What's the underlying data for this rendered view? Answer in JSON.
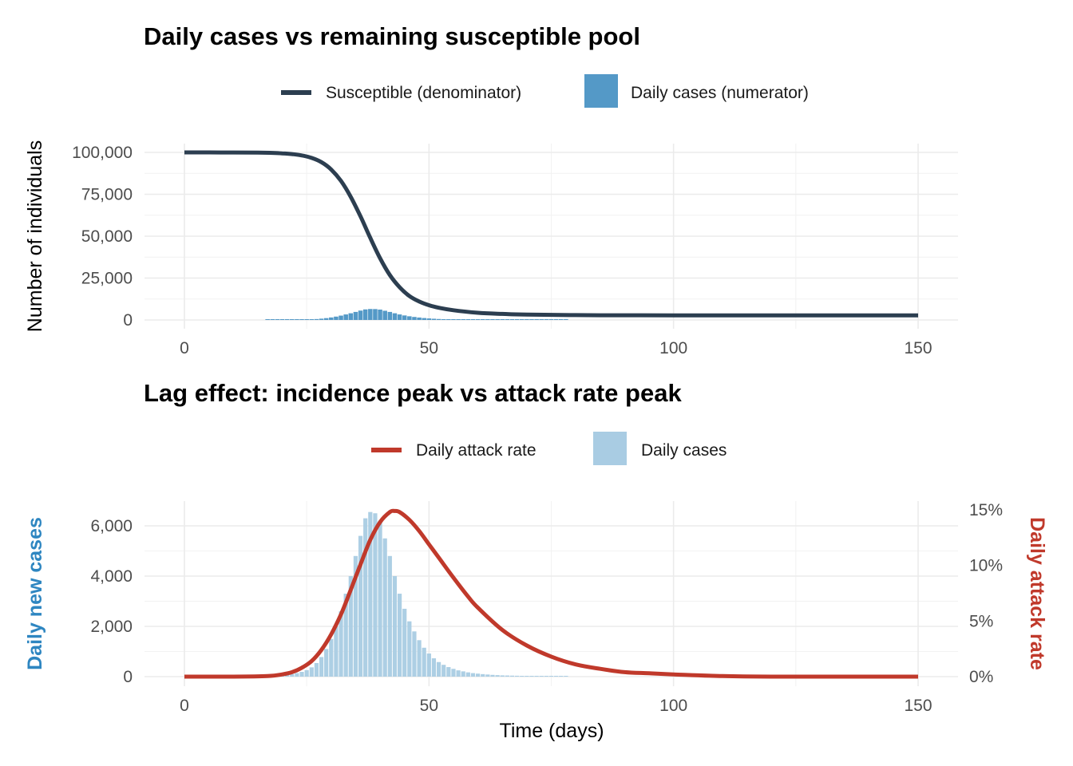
{
  "chart_data": [
    {
      "type": "line",
      "title": "Daily cases vs remaining susceptible pool",
      "xlabel": "",
      "ylabel": "Number of individuals",
      "xlim": [
        0,
        150
      ],
      "ylim": [
        0,
        100000
      ],
      "x_ticks": [
        0,
        50,
        100,
        150
      ],
      "x_tick_labels": [
        "0",
        "50",
        "100",
        "150"
      ],
      "y_ticks": [
        0,
        25000,
        50000,
        75000,
        100000
      ],
      "y_tick_labels": [
        "0",
        "25,000",
        "50,000",
        "75,000",
        "100,000"
      ],
      "grid": true,
      "legend_position": "top",
      "legend": [
        {
          "name": "Susceptible (denominator)",
          "kind": "line",
          "color": "#2c3e50"
        },
        {
          "name": "Daily cases (numerator)",
          "kind": "bar",
          "color": "#5499c7"
        }
      ],
      "series": [
        {
          "name": "Susceptible (denominator)",
          "type": "line",
          "color": "#2c3e50",
          "x": [
            0,
            5,
            10,
            15,
            18,
            20,
            22,
            24,
            26,
            28,
            30,
            32,
            34,
            36,
            38,
            40,
            42,
            44,
            46,
            48,
            50,
            52,
            55,
            60,
            65,
            70,
            80,
            90,
            100,
            120,
            150
          ],
          "values": [
            100000,
            99980,
            99940,
            99850,
            99700,
            99450,
            99000,
            98200,
            96700,
            94200,
            89800,
            83000,
            73500,
            61800,
            49000,
            36800,
            26800,
            19500,
            14300,
            11000,
            8800,
            7300,
            5800,
            4300,
            3600,
            3200,
            2900,
            2800,
            2750,
            2700,
            2700
          ]
        }
      ],
      "bars": {
        "name": "Daily cases (numerator)",
        "color": "#5499c7",
        "x": [
          17,
          18,
          19,
          20,
          21,
          22,
          23,
          24,
          25,
          26,
          27,
          28,
          29,
          30,
          31,
          32,
          33,
          34,
          35,
          36,
          37,
          38,
          39,
          40,
          41,
          42,
          43,
          44,
          45,
          46,
          47,
          48,
          49,
          50,
          51,
          52,
          53,
          54,
          55,
          56,
          57,
          58,
          59,
          60,
          61,
          62,
          63,
          64,
          65,
          66,
          67,
          68,
          69,
          70,
          71,
          72,
          73,
          74,
          75,
          76,
          77,
          78
        ],
        "values": [
          20,
          25,
          35,
          50,
          70,
          100,
          140,
          190,
          260,
          370,
          540,
          780,
          1100,
          1500,
          2000,
          2600,
          3300,
          4000,
          4800,
          5600,
          6300,
          6550,
          6500,
          6200,
          5500,
          4800,
          4000,
          3300,
          2700,
          2200,
          1800,
          1450,
          1150,
          920,
          730,
          580,
          470,
          380,
          310,
          250,
          210,
          170,
          140,
          120,
          100,
          85,
          70,
          60,
          50,
          45,
          40,
          35,
          30,
          26,
          22,
          19,
          16,
          14,
          12,
          10,
          9,
          8
        ]
      }
    },
    {
      "type": "bar",
      "title": "Lag effect: incidence peak vs attack rate peak",
      "xlabel": "Time (days)",
      "ylabel": "Daily new cases",
      "ylabel_color": "#2e86c1",
      "y2label": "Daily attack rate",
      "y2label_color": "#c0392b",
      "xlim": [
        0,
        150
      ],
      "ylim": [
        0,
        6600
      ],
      "y2lim": [
        0,
        0.15
      ],
      "x_ticks": [
        0,
        50,
        100,
        150
      ],
      "x_tick_labels": [
        "0",
        "50",
        "100",
        "150"
      ],
      "y_ticks": [
        0,
        2000,
        4000,
        6000
      ],
      "y_tick_labels": [
        "0",
        "2,000",
        "4,000",
        "6,000"
      ],
      "y2_ticks": [
        0,
        0.05,
        0.1,
        0.15
      ],
      "y2_tick_labels": [
        "0%",
        "5%",
        "10%",
        "15%"
      ],
      "grid": true,
      "legend_position": "top",
      "legend": [
        {
          "name": "Daily attack rate",
          "kind": "line",
          "color": "#c0392b"
        },
        {
          "name": "Daily cases",
          "kind": "bar",
          "color": "#a9cce3"
        }
      ],
      "bars": {
        "name": "Daily cases",
        "color": "#a9cce3",
        "x": [
          17,
          18,
          19,
          20,
          21,
          22,
          23,
          24,
          25,
          26,
          27,
          28,
          29,
          30,
          31,
          32,
          33,
          34,
          35,
          36,
          37,
          38,
          39,
          40,
          41,
          42,
          43,
          44,
          45,
          46,
          47,
          48,
          49,
          50,
          51,
          52,
          53,
          54,
          55,
          56,
          57,
          58,
          59,
          60,
          61,
          62,
          63,
          64,
          65,
          66,
          67,
          68,
          69,
          70,
          71,
          72,
          73,
          74,
          75,
          76,
          77,
          78
        ],
        "values": [
          20,
          25,
          35,
          50,
          70,
          100,
          140,
          190,
          260,
          370,
          540,
          780,
          1100,
          1500,
          2000,
          2600,
          3300,
          4000,
          4800,
          5600,
          6300,
          6550,
          6500,
          6200,
          5500,
          4800,
          4000,
          3300,
          2700,
          2200,
          1800,
          1450,
          1150,
          920,
          730,
          580,
          470,
          380,
          310,
          250,
          210,
          170,
          140,
          120,
          100,
          85,
          70,
          60,
          50,
          45,
          40,
          35,
          30,
          26,
          22,
          19,
          16,
          14,
          12,
          10,
          9,
          8
        ]
      },
      "series": [
        {
          "name": "Daily attack rate",
          "type": "line",
          "axis": "y2",
          "color": "#c0392b",
          "x": [
            0,
            10,
            17,
            20,
            22,
            24,
            26,
            28,
            30,
            32,
            34,
            36,
            38,
            40,
            42,
            43,
            44,
            46,
            48,
            50,
            52,
            55,
            58,
            60,
            65,
            70,
            75,
            80,
            85,
            90,
            95,
            100,
            110,
            120,
            130,
            140,
            150
          ],
          "values": [
            0.0,
            0.0,
            0.0005,
            0.002,
            0.004,
            0.008,
            0.014,
            0.024,
            0.038,
            0.056,
            0.078,
            0.101,
            0.123,
            0.139,
            0.148,
            0.149,
            0.148,
            0.141,
            0.131,
            0.119,
            0.107,
            0.089,
            0.072,
            0.062,
            0.042,
            0.028,
            0.018,
            0.011,
            0.007,
            0.004,
            0.003,
            0.002,
            0.0005,
            0.0,
            0.0,
            0.0,
            0.0
          ]
        }
      ]
    }
  ]
}
